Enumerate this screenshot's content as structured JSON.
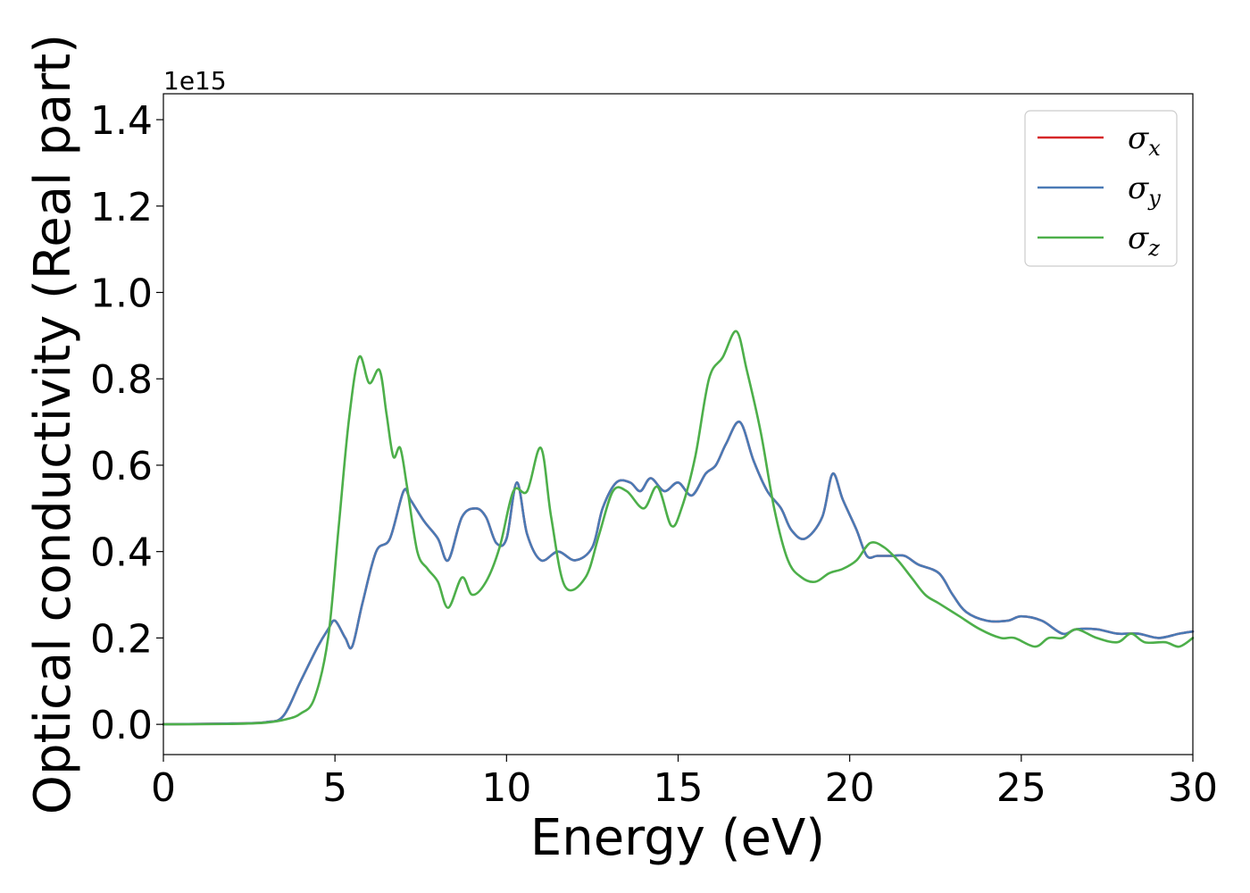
{
  "chart_data": {
    "type": "line",
    "xlabel": "Energy (eV)",
    "ylabel": "Optical conductivity (Real part)",
    "y_offset_label": "1e15",
    "xlim": [
      0,
      30
    ],
    "ylim": [
      -0.07,
      1.46
    ],
    "x_ticks": [
      0,
      5,
      10,
      15,
      20,
      25,
      30
    ],
    "x_tick_labels": [
      "0",
      "5",
      "10",
      "15",
      "20",
      "25",
      "30"
    ],
    "y_ticks": [
      0.0,
      0.2,
      0.4,
      0.6,
      0.8,
      1.0,
      1.2,
      1.4
    ],
    "y_tick_labels": [
      "0.0",
      "0.2",
      "0.4",
      "0.6",
      "0.8",
      "1.0",
      "1.2",
      "1.4"
    ],
    "grid": false,
    "legend_position": "top-right",
    "series": [
      {
        "name": "σx",
        "legend_symbol": "σ",
        "legend_subscript": "x",
        "color": "#d62728",
        "points": [
          [
            0,
            0
          ],
          [
            2,
            0.002
          ],
          [
            3,
            0.005
          ],
          [
            3.5,
            0.02
          ],
          [
            4,
            0.1
          ],
          [
            4.5,
            0.18
          ],
          [
            4.8,
            0.22
          ],
          [
            5,
            0.24
          ],
          [
            5.3,
            0.2
          ],
          [
            5.5,
            0.18
          ],
          [
            5.8,
            0.28
          ],
          [
            6.2,
            0.4
          ],
          [
            6.6,
            0.43
          ],
          [
            7,
            0.54
          ],
          [
            7.2,
            0.52
          ],
          [
            7.6,
            0.47
          ],
          [
            8,
            0.43
          ],
          [
            8.3,
            0.38
          ],
          [
            8.7,
            0.48
          ],
          [
            9.1,
            0.5
          ],
          [
            9.4,
            0.48
          ],
          [
            9.7,
            0.42
          ],
          [
            10,
            0.43
          ],
          [
            10.3,
            0.56
          ],
          [
            10.6,
            0.44
          ],
          [
            11,
            0.38
          ],
          [
            11.5,
            0.4
          ],
          [
            12,
            0.38
          ],
          [
            12.5,
            0.41
          ],
          [
            12.8,
            0.5
          ],
          [
            13.2,
            0.56
          ],
          [
            13.6,
            0.56
          ],
          [
            13.9,
            0.54
          ],
          [
            14.2,
            0.57
          ],
          [
            14.6,
            0.54
          ],
          [
            15,
            0.56
          ],
          [
            15.4,
            0.53
          ],
          [
            15.8,
            0.58
          ],
          [
            16.1,
            0.6
          ],
          [
            16.4,
            0.65
          ],
          [
            16.8,
            0.7
          ],
          [
            17.2,
            0.61
          ],
          [
            17.6,
            0.54
          ],
          [
            18,
            0.5
          ],
          [
            18.3,
            0.45
          ],
          [
            18.7,
            0.43
          ],
          [
            19.2,
            0.48
          ],
          [
            19.5,
            0.58
          ],
          [
            19.8,
            0.52
          ],
          [
            20.2,
            0.45
          ],
          [
            20.5,
            0.39
          ],
          [
            20.8,
            0.39
          ],
          [
            21.2,
            0.39
          ],
          [
            21.6,
            0.39
          ],
          [
            22,
            0.37
          ],
          [
            22.6,
            0.35
          ],
          [
            23,
            0.3
          ],
          [
            23.4,
            0.26
          ],
          [
            24,
            0.24
          ],
          [
            24.6,
            0.24
          ],
          [
            25,
            0.25
          ],
          [
            25.6,
            0.24
          ],
          [
            26.2,
            0.21
          ],
          [
            26.6,
            0.22
          ],
          [
            27.2,
            0.22
          ],
          [
            27.8,
            0.21
          ],
          [
            28.4,
            0.21
          ],
          [
            29,
            0.2
          ],
          [
            29.6,
            0.21
          ],
          [
            30,
            0.215
          ]
        ]
      },
      {
        "name": "σy",
        "legend_symbol": "σ",
        "legend_subscript": "y",
        "color": "#4a7ab5",
        "points": [
          [
            0,
            0
          ],
          [
            2,
            0.002
          ],
          [
            3,
            0.005
          ],
          [
            3.5,
            0.02
          ],
          [
            4,
            0.1
          ],
          [
            4.5,
            0.18
          ],
          [
            4.8,
            0.22
          ],
          [
            5,
            0.24
          ],
          [
            5.3,
            0.2
          ],
          [
            5.5,
            0.18
          ],
          [
            5.8,
            0.28
          ],
          [
            6.2,
            0.4
          ],
          [
            6.6,
            0.43
          ],
          [
            7,
            0.54
          ],
          [
            7.2,
            0.52
          ],
          [
            7.6,
            0.47
          ],
          [
            8,
            0.43
          ],
          [
            8.3,
            0.38
          ],
          [
            8.7,
            0.48
          ],
          [
            9.1,
            0.5
          ],
          [
            9.4,
            0.48
          ],
          [
            9.7,
            0.42
          ],
          [
            10,
            0.43
          ],
          [
            10.3,
            0.56
          ],
          [
            10.6,
            0.44
          ],
          [
            11,
            0.38
          ],
          [
            11.5,
            0.4
          ],
          [
            12,
            0.38
          ],
          [
            12.5,
            0.41
          ],
          [
            12.8,
            0.5
          ],
          [
            13.2,
            0.56
          ],
          [
            13.6,
            0.56
          ],
          [
            13.9,
            0.54
          ],
          [
            14.2,
            0.57
          ],
          [
            14.6,
            0.54
          ],
          [
            15,
            0.56
          ],
          [
            15.4,
            0.53
          ],
          [
            15.8,
            0.58
          ],
          [
            16.1,
            0.6
          ],
          [
            16.4,
            0.65
          ],
          [
            16.8,
            0.7
          ],
          [
            17.2,
            0.61
          ],
          [
            17.6,
            0.54
          ],
          [
            18,
            0.5
          ],
          [
            18.3,
            0.45
          ],
          [
            18.7,
            0.43
          ],
          [
            19.2,
            0.48
          ],
          [
            19.5,
            0.58
          ],
          [
            19.8,
            0.52
          ],
          [
            20.2,
            0.45
          ],
          [
            20.5,
            0.39
          ],
          [
            20.8,
            0.39
          ],
          [
            21.2,
            0.39
          ],
          [
            21.6,
            0.39
          ],
          [
            22,
            0.37
          ],
          [
            22.6,
            0.35
          ],
          [
            23,
            0.3
          ],
          [
            23.4,
            0.26
          ],
          [
            24,
            0.24
          ],
          [
            24.6,
            0.24
          ],
          [
            25,
            0.25
          ],
          [
            25.6,
            0.24
          ],
          [
            26.2,
            0.21
          ],
          [
            26.6,
            0.22
          ],
          [
            27.2,
            0.22
          ],
          [
            27.8,
            0.21
          ],
          [
            28.4,
            0.21
          ],
          [
            29,
            0.2
          ],
          [
            29.6,
            0.21
          ],
          [
            30,
            0.215
          ]
        ]
      },
      {
        "name": "σz",
        "legend_symbol": "σ",
        "legend_subscript": "z",
        "color": "#4daf4a",
        "points": [
          [
            0,
            0
          ],
          [
            2,
            0.001
          ],
          [
            3,
            0.004
          ],
          [
            3.6,
            0.012
          ],
          [
            4,
            0.025
          ],
          [
            4.4,
            0.06
          ],
          [
            4.8,
            0.2
          ],
          [
            5.1,
            0.45
          ],
          [
            5.4,
            0.7
          ],
          [
            5.7,
            0.85
          ],
          [
            6,
            0.79
          ],
          [
            6.3,
            0.82
          ],
          [
            6.5,
            0.72
          ],
          [
            6.7,
            0.62
          ],
          [
            6.9,
            0.64
          ],
          [
            7.1,
            0.55
          ],
          [
            7.4,
            0.4
          ],
          [
            7.7,
            0.36
          ],
          [
            8,
            0.33
          ],
          [
            8.3,
            0.27
          ],
          [
            8.7,
            0.34
          ],
          [
            9,
            0.3
          ],
          [
            9.4,
            0.33
          ],
          [
            9.8,
            0.41
          ],
          [
            10.2,
            0.54
          ],
          [
            10.6,
            0.54
          ],
          [
            11,
            0.64
          ],
          [
            11.3,
            0.48
          ],
          [
            11.7,
            0.32
          ],
          [
            12.3,
            0.34
          ],
          [
            12.7,
            0.44
          ],
          [
            13.1,
            0.54
          ],
          [
            13.5,
            0.54
          ],
          [
            14,
            0.5
          ],
          [
            14.4,
            0.55
          ],
          [
            14.8,
            0.46
          ],
          [
            15.1,
            0.5
          ],
          [
            15.5,
            0.62
          ],
          [
            15.9,
            0.8
          ],
          [
            16.3,
            0.85
          ],
          [
            16.7,
            0.91
          ],
          [
            17,
            0.82
          ],
          [
            17.4,
            0.68
          ],
          [
            17.8,
            0.5
          ],
          [
            18.2,
            0.38
          ],
          [
            18.6,
            0.34
          ],
          [
            19,
            0.33
          ],
          [
            19.4,
            0.35
          ],
          [
            19.8,
            0.36
          ],
          [
            20.2,
            0.38
          ],
          [
            20.6,
            0.42
          ],
          [
            21,
            0.41
          ],
          [
            21.4,
            0.38
          ],
          [
            21.8,
            0.34
          ],
          [
            22.2,
            0.3
          ],
          [
            22.6,
            0.28
          ],
          [
            23.2,
            0.25
          ],
          [
            23.8,
            0.22
          ],
          [
            24.4,
            0.2
          ],
          [
            24.8,
            0.2
          ],
          [
            25.4,
            0.18
          ],
          [
            25.8,
            0.2
          ],
          [
            26.2,
            0.2
          ],
          [
            26.6,
            0.22
          ],
          [
            27.2,
            0.2
          ],
          [
            27.8,
            0.19
          ],
          [
            28.2,
            0.21
          ],
          [
            28.6,
            0.19
          ],
          [
            29.2,
            0.19
          ],
          [
            29.6,
            0.18
          ],
          [
            30,
            0.2
          ]
        ]
      }
    ]
  }
}
